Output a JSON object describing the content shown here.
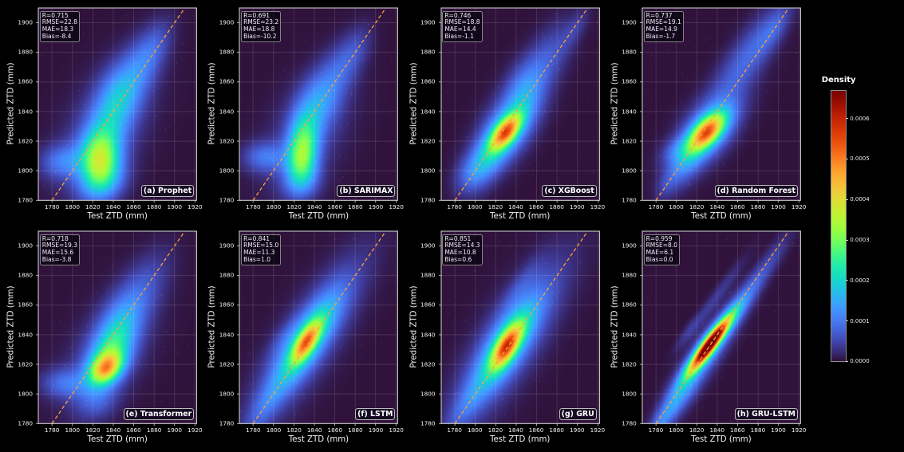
{
  "figure": {
    "background": "#000000",
    "x_axis": {
      "label": "Test ZTD (mm)",
      "ticks": [
        1780,
        1800,
        1820,
        1840,
        1860,
        1880,
        1900,
        1920
      ],
      "range": [
        1766.6,
        1921.6
      ]
    },
    "y_axis": {
      "label": "Predicted ZTD (mm)",
      "ticks": [
        1780,
        1800,
        1820,
        1840,
        1860,
        1880,
        1900
      ],
      "range": [
        1780,
        1910
      ]
    },
    "identity_line": {
      "color": "#ffa033",
      "style": "dashed"
    },
    "grid_color": "rgba(255,255,255,0.15)",
    "spine_color": "#d9d9d9",
    "tick_color": "#cccccc",
    "text_color": "#f2f2f2"
  },
  "colorbar": {
    "title": "Density",
    "tick_labels": [
      "0.0000",
      "0.0001",
      "0.0002",
      "0.0003",
      "0.0004",
      "0.0005",
      "0.0006"
    ],
    "tick_values": [
      0,
      0.0001,
      0.0002,
      0.0003,
      0.0004,
      0.0005,
      0.0006
    ],
    "vmin": 0,
    "vmax": 0.000668,
    "colormap": {
      "name": "turbo",
      "stops": [
        [
          48,
          18,
          59
        ],
        [
          57,
          42,
          115
        ],
        [
          64,
          64,
          162
        ],
        [
          68,
          86,
          199
        ],
        [
          70,
          107,
          227
        ],
        [
          70,
          128,
          246
        ],
        [
          66,
          148,
          255
        ],
        [
          55,
          168,
          250
        ],
        [
          40,
          188,
          235
        ],
        [
          28,
          205,
          216
        ],
        [
          24,
          221,
          194
        ],
        [
          31,
          233,
          175
        ],
        [
          50,
          242,
          152
        ],
        [
          78,
          249,
          125
        ],
        [
          109,
          254,
          98
        ],
        [
          139,
          255,
          75
        ],
        [
          164,
          252,
          60
        ],
        [
          185,
          246,
          53
        ],
        [
          205,
          236,
          52
        ],
        [
          223,
          223,
          55
        ],
        [
          238,
          207,
          58
        ],
        [
          248,
          190,
          57
        ],
        [
          253,
          172,
          52
        ],
        [
          254,
          150,
          43
        ],
        [
          251,
          126,
          33
        ],
        [
          244,
          102,
          23
        ],
        [
          235,
          80,
          14
        ],
        [
          223,
          63,
          8
        ],
        [
          208,
          47,
          5
        ],
        [
          190,
          33,
          2
        ],
        [
          169,
          22,
          1
        ],
        [
          146,
          11,
          1
        ],
        [
          122,
          4,
          3
        ]
      ]
    }
  },
  "chart_data": {
    "type": "heatmap",
    "subtype": "kde-density-scatter-grid",
    "grid": {
      "rows": 2,
      "cols": 4
    },
    "stat_keys": [
      "R",
      "RMSE",
      "MAE",
      "Bias"
    ],
    "panels": [
      {
        "id": "a",
        "label": "(a) Prophet",
        "stats": {
          "R": "0.715",
          "RMSE": "22.8",
          "MAE": "18.3",
          "Bias": "-8.4"
        },
        "blobs": [
          [
            1827,
            1806,
            13,
            13,
            -20,
            0.00026
          ],
          [
            1832,
            1822,
            13,
            17,
            -28,
            0.0001
          ],
          [
            1845,
            1848,
            16,
            13,
            45,
            0.0001
          ],
          [
            1862,
            1866,
            20,
            12,
            45,
            8e-05
          ],
          [
            1880,
            1884,
            16,
            9,
            45,
            5e-05
          ],
          [
            1791,
            1806,
            15,
            8,
            3,
            9e-05
          ],
          [
            1828,
            1791,
            16,
            9,
            10,
            8e-05
          ],
          [
            1831,
            1826,
            36,
            22,
            42,
            5e-05
          ]
        ]
      },
      {
        "id": "b",
        "label": "(b) SARIMAX",
        "stats": {
          "R": "0.691",
          "RMSE": "23.2",
          "MAE": "18.8",
          "Bias": "-10.2"
        },
        "blobs": [
          [
            1829,
            1816,
            10,
            15,
            -10,
            0.00024
          ],
          [
            1827,
            1803,
            10,
            10,
            0,
            9e-05
          ],
          [
            1843,
            1845,
            16,
            12,
            45,
            9e-05
          ],
          [
            1862,
            1866,
            20,
            11,
            45,
            6e-05
          ],
          [
            1880,
            1882,
            14,
            8,
            45,
            3.5e-05
          ],
          [
            1792,
            1809,
            15,
            7,
            0,
            8.5e-05
          ],
          [
            1826,
            1791,
            13,
            8,
            5,
            6e-05
          ],
          [
            1832,
            1824,
            34,
            21,
            40,
            4.5e-05
          ]
        ]
      },
      {
        "id": "c",
        "label": "(c) XGBoost",
        "stats": {
          "R": "0.746",
          "RMSE": "18.8",
          "MAE": "14.4",
          "Bias": "-1.1"
        },
        "blobs": [
          [
            1830,
            1826,
            12,
            5.5,
            35,
            0.00036
          ],
          [
            1831,
            1827,
            22,
            11,
            38,
            0.00015
          ],
          [
            1811,
            1806,
            17,
            9,
            42,
            8e-05
          ],
          [
            1797,
            1800,
            13,
            8,
            30,
            5.5e-05
          ],
          [
            1848,
            1854,
            15,
            11,
            45,
            6.5e-05
          ],
          [
            1868,
            1874,
            24,
            11,
            43,
            6.5e-05
          ],
          [
            1833,
            1832,
            30,
            15,
            42,
            3.5e-05
          ],
          [
            1898,
            1896,
            12,
            5,
            45,
            3e-05
          ]
        ]
      },
      {
        "id": "d",
        "label": "(d) Random Forest",
        "stats": {
          "R": "0.737",
          "RMSE": "19.1",
          "MAE": "14.9",
          "Bias": "-1.7"
        },
        "blobs": [
          [
            1830,
            1826,
            13.5,
            6,
            30,
            0.00036
          ],
          [
            1831,
            1826,
            21,
            10.5,
            32,
            0.00015
          ],
          [
            1809,
            1805,
            16,
            8,
            40,
            8e-05
          ],
          [
            1800,
            1813,
            11,
            6,
            15,
            5e-05
          ],
          [
            1872,
            1879,
            30,
            10,
            43,
            7.5e-05
          ],
          [
            1896,
            1896,
            14,
            6,
            45,
            4.5e-05
          ],
          [
            1834,
            1833,
            34,
            14,
            40,
            3.5e-05
          ],
          [
            1790,
            1790,
            8,
            5,
            45,
            3e-05
          ]
        ]
      },
      {
        "id": "e",
        "label": "(e) Transformer",
        "stats": {
          "R": "0.718",
          "RMSE": "19.3",
          "MAE": "15.6",
          "Bias": "-3.8"
        },
        "blobs": [
          [
            1833,
            1817,
            11,
            6.5,
            20,
            0.0003
          ],
          [
            1834,
            1822,
            17,
            11,
            35,
            0.00015
          ],
          [
            1842,
            1838,
            16,
            11,
            42,
            8e-05
          ],
          [
            1850,
            1850,
            18,
            12,
            45,
            5.5e-05
          ],
          [
            1793,
            1807,
            16,
            7,
            0,
            8e-05
          ],
          [
            1868,
            1870,
            24,
            12,
            44,
            5.5e-05
          ],
          [
            1835,
            1828,
            36,
            20,
            40,
            4.5e-05
          ],
          [
            1824,
            1794,
            14,
            8,
            10,
            5e-05
          ]
        ]
      },
      {
        "id": "f",
        "label": "(f) LSTM",
        "stats": {
          "R": "0.841",
          "RMSE": "15.0",
          "MAE": "11.3",
          "Bias": "1.0"
        },
        "blobs": [
          [
            1832,
            1835,
            12,
            5,
            45,
            0.00028
          ],
          [
            1833,
            1836,
            26,
            9,
            45,
            0.00015
          ],
          [
            1834,
            1837,
            42,
            12,
            45,
            8e-05
          ],
          [
            1834,
            1836,
            55,
            18,
            45,
            4e-05
          ],
          [
            1793,
            1793,
            20,
            7,
            45,
            5.5e-05
          ],
          [
            1810,
            1838,
            14,
            5,
            42,
            2.5e-05
          ]
        ]
      },
      {
        "id": "g",
        "label": "(g) GRU",
        "stats": {
          "R": "0.851",
          "RMSE": "14.3",
          "MAE": "10.8",
          "Bias": "0.6"
        },
        "blobs": [
          [
            1831,
            1832,
            13,
            5.5,
            45,
            0.00033
          ],
          [
            1832,
            1834,
            26,
            9.5,
            45,
            0.00015
          ],
          [
            1834,
            1836,
            42,
            13.5,
            45,
            8e-05
          ],
          [
            1833,
            1834,
            55,
            19,
            45,
            4e-05
          ],
          [
            1793,
            1794,
            20,
            7,
            45,
            5.5e-05
          ],
          [
            1845,
            1874,
            18,
            5,
            42,
            2.8e-05
          ]
        ]
      },
      {
        "id": "h",
        "label": "(h) GRU-LSTM",
        "stats": {
          "R": "0.959",
          "RMSE": "8.0",
          "MAE": "6.1",
          "Bias": "0.0"
        },
        "blobs": [
          [
            1833,
            1833.5,
            18,
            3.5,
            42,
            0.00055
          ],
          [
            1833,
            1833.5,
            22,
            5,
            42,
            0.00015
          ],
          [
            1829,
            1827,
            30,
            8,
            44,
            0.0001
          ],
          [
            1805,
            1800,
            18,
            7,
            45,
            8e-05
          ],
          [
            1786,
            1782,
            16,
            5,
            45,
            8e-05
          ],
          [
            1863,
            1860,
            20,
            5.5,
            45,
            7e-05
          ],
          [
            1890,
            1887,
            22,
            5,
            45,
            4.5e-05
          ],
          [
            1840,
            1866,
            26,
            3.5,
            43,
            3.5e-05
          ],
          [
            1812,
            1842,
            12,
            3,
            42,
            2.8e-05
          ]
        ]
      }
    ]
  }
}
